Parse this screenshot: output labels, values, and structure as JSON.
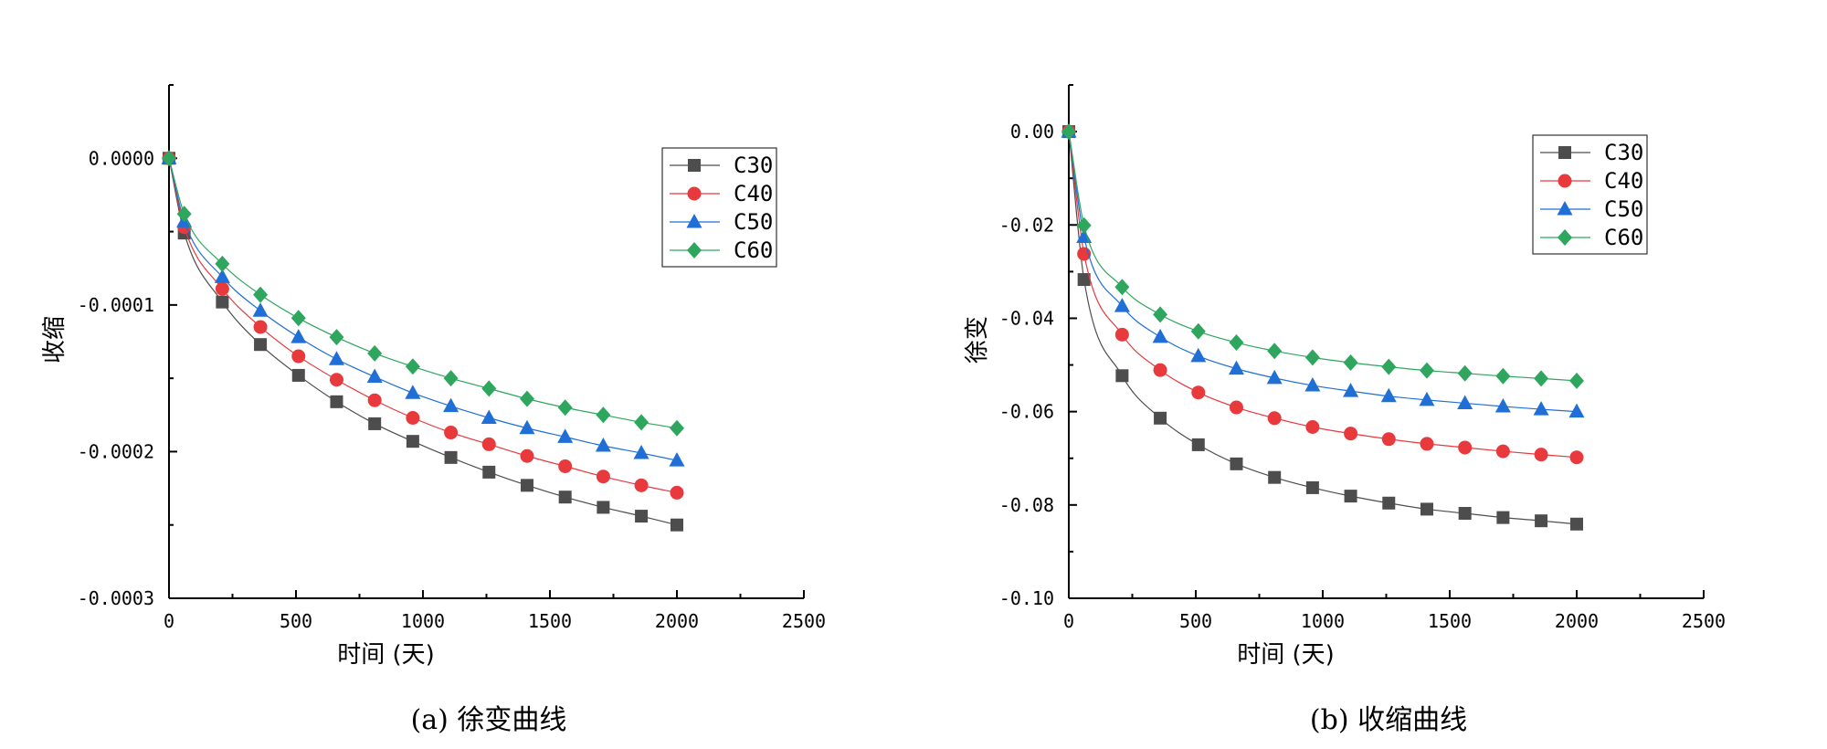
{
  "chart_data": [
    {
      "type": "line",
      "caption": "(a)  徐变曲线",
      "xlabel": "时间 (天)",
      "ylabel": "收缩",
      "xlim": [
        0,
        2500
      ],
      "ylim": [
        -0.0003,
        5e-05
      ],
      "x_ticks": [
        0,
        500,
        1000,
        1500,
        2000,
        2500
      ],
      "x_tick_labels": [
        "0",
        "500",
        "1000",
        "1500",
        "2000",
        "2500"
      ],
      "y_ticks": [
        0.0,
        -0.0001,
        -0.0002,
        -0.0003
      ],
      "y_tick_labels": [
        "0.0000",
        "-0.0001",
        "-0.0002",
        "-0.0003"
      ],
      "legend": [
        "C30",
        "C40",
        "C50",
        "C60"
      ],
      "x": [
        0,
        60,
        210,
        360,
        510,
        660,
        810,
        960,
        1110,
        1260,
        1410,
        1560,
        1710,
        1860,
        2000
      ],
      "series": [
        {
          "name": "C30",
          "color": "#4d4d4d",
          "marker": "square",
          "values": [
            0.0,
            -5.1e-05,
            -9.8e-05,
            -0.000127,
            -0.000148,
            -0.000166,
            -0.000181,
            -0.000193,
            -0.000204,
            -0.000214,
            -0.000223,
            -0.000231,
            -0.000238,
            -0.000244,
            -0.00025
          ]
        },
        {
          "name": "C40",
          "color": "#e8393d",
          "marker": "circle",
          "values": [
            0.0,
            -4.7e-05,
            -8.9e-05,
            -0.000115,
            -0.000135,
            -0.000151,
            -0.000165,
            -0.000177,
            -0.000187,
            -0.000195,
            -0.000203,
            -0.00021,
            -0.000217,
            -0.000223,
            -0.000228
          ]
        },
        {
          "name": "C50",
          "color": "#1f6fd6",
          "marker": "triangle",
          "values": [
            0.0,
            -4.3e-05,
            -8.1e-05,
            -0.000104,
            -0.000122,
            -0.000137,
            -0.000149,
            -0.00016,
            -0.000169,
            -0.000177,
            -0.000184,
            -0.00019,
            -0.000196,
            -0.000201,
            -0.000206
          ]
        },
        {
          "name": "C60",
          "color": "#2ea65e",
          "marker": "diamond",
          "values": [
            0.0,
            -3.8e-05,
            -7.2e-05,
            -9.3e-05,
            -0.000109,
            -0.000122,
            -0.000133,
            -0.000142,
            -0.00015,
            -0.000157,
            -0.000164,
            -0.00017,
            -0.000175,
            -0.00018,
            -0.000184
          ]
        }
      ]
    },
    {
      "type": "line",
      "caption": "(b)  收缩曲线",
      "xlabel": "时间 (天)",
      "ylabel": "徐变",
      "xlim": [
        0,
        2500
      ],
      "ylim": [
        -0.1,
        0.01
      ],
      "x_ticks": [
        0,
        500,
        1000,
        1500,
        2000,
        2500
      ],
      "x_tick_labels": [
        "0",
        "500",
        "1000",
        "1500",
        "2000",
        "2500"
      ],
      "y_ticks": [
        0.0,
        -0.02,
        -0.04,
        -0.06,
        -0.08,
        -0.1
      ],
      "y_tick_labels": [
        "0.00",
        "-0.02",
        "-0.04",
        "-0.06",
        "-0.08",
        "-0.10"
      ],
      "legend": [
        "C30",
        "C40",
        "C50",
        "C60"
      ],
      "x": [
        0,
        60,
        210,
        360,
        510,
        660,
        810,
        960,
        1110,
        1260,
        1410,
        1560,
        1710,
        1860,
        2000
      ],
      "series": [
        {
          "name": "C30",
          "color": "#4d4d4d",
          "marker": "square",
          "values": [
            0.0,
            -0.0317,
            -0.0523,
            -0.0614,
            -0.0671,
            -0.0712,
            -0.0741,
            -0.0763,
            -0.0781,
            -0.0796,
            -0.0809,
            -0.0818,
            -0.0827,
            -0.0834,
            -0.0841
          ]
        },
        {
          "name": "C40",
          "color": "#e8393d",
          "marker": "circle",
          "values": [
            0.0,
            -0.0262,
            -0.0435,
            -0.0511,
            -0.0559,
            -0.0591,
            -0.0614,
            -0.0633,
            -0.0647,
            -0.0659,
            -0.0669,
            -0.0677,
            -0.0685,
            -0.0692,
            -0.0698
          ]
        },
        {
          "name": "C50",
          "color": "#1f6fd6",
          "marker": "triangle",
          "values": [
            0.0,
            -0.0226,
            -0.0374,
            -0.044,
            -0.0481,
            -0.0508,
            -0.0528,
            -0.0544,
            -0.0556,
            -0.0567,
            -0.0575,
            -0.0582,
            -0.0589,
            -0.0595,
            -0.06
          ]
        },
        {
          "name": "C60",
          "color": "#2ea65e",
          "marker": "diamond",
          "values": [
            0.0,
            -0.0201,
            -0.0333,
            -0.0392,
            -0.0428,
            -0.0452,
            -0.047,
            -0.0484,
            -0.0495,
            -0.0504,
            -0.0512,
            -0.0518,
            -0.0524,
            -0.0529,
            -0.0534
          ]
        }
      ]
    }
  ]
}
